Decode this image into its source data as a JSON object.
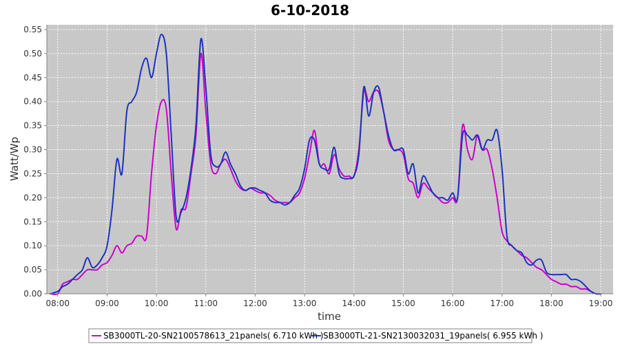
{
  "chart_data": {
    "type": "line",
    "title": "6-10-2018",
    "xlabel": "time",
    "ylabel": "Watt/Wp",
    "xlim": [
      7.78,
      19.25
    ],
    "ylim": [
      0.0,
      0.56
    ],
    "x_ticks": [
      "08:00",
      "09:00",
      "10:00",
      "11:00",
      "12:00",
      "13:00",
      "14:00",
      "15:00",
      "16:00",
      "17:00",
      "18:00",
      "19:00"
    ],
    "y_ticks": [
      "0.00",
      "0.05",
      "0.10",
      "0.15",
      "0.20",
      "0.25",
      "0.30",
      "0.35",
      "0.40",
      "0.45",
      "0.50",
      "0.55"
    ],
    "grid": true,
    "legend_position": "bottom",
    "series": [
      {
        "name": "SB3000TL-20-SN2100578613_21panels( 6.710 kWh )",
        "color": "#cc00cc",
        "x": [
          7.85,
          8.0,
          8.1,
          8.2,
          8.3,
          8.4,
          8.5,
          8.6,
          8.7,
          8.8,
          8.9,
          9.0,
          9.1,
          9.2,
          9.3,
          9.4,
          9.5,
          9.6,
          9.7,
          9.8,
          9.9,
          10.0,
          10.1,
          10.2,
          10.3,
          10.4,
          10.5,
          10.6,
          10.7,
          10.8,
          10.9,
          11.0,
          11.1,
          11.2,
          11.3,
          11.4,
          11.5,
          11.6,
          11.7,
          11.8,
          11.9,
          12.0,
          12.1,
          12.2,
          12.3,
          12.4,
          12.5,
          12.6,
          12.7,
          12.8,
          12.9,
          13.0,
          13.1,
          13.2,
          13.3,
          13.4,
          13.5,
          13.6,
          13.7,
          13.8,
          13.9,
          14.0,
          14.1,
          14.2,
          14.3,
          14.4,
          14.5,
          14.6,
          14.7,
          14.8,
          14.9,
          15.0,
          15.1,
          15.2,
          15.3,
          15.4,
          15.5,
          15.6,
          15.7,
          15.8,
          15.9,
          16.0,
          16.1,
          16.2,
          16.3,
          16.4,
          16.5,
          16.6,
          16.7,
          16.8,
          16.9,
          17.0,
          17.1,
          17.2,
          17.3,
          17.4,
          17.5,
          17.6,
          17.7,
          17.8,
          17.9,
          18.0,
          18.1,
          18.2,
          18.3,
          18.4,
          18.5,
          18.6,
          18.7,
          18.8,
          18.9,
          19.0
        ],
        "values": [
          0.0,
          0.0,
          0.02,
          0.025,
          0.03,
          0.03,
          0.04,
          0.05,
          0.05,
          0.05,
          0.06,
          0.065,
          0.08,
          0.1,
          0.085,
          0.1,
          0.105,
          0.12,
          0.12,
          0.12,
          0.25,
          0.35,
          0.4,
          0.385,
          0.25,
          0.135,
          0.175,
          0.18,
          0.25,
          0.33,
          0.5,
          0.38,
          0.27,
          0.25,
          0.27,
          0.28,
          0.26,
          0.235,
          0.22,
          0.215,
          0.22,
          0.215,
          0.21,
          0.21,
          0.205,
          0.195,
          0.19,
          0.19,
          0.19,
          0.2,
          0.21,
          0.24,
          0.29,
          0.34,
          0.27,
          0.27,
          0.25,
          0.29,
          0.26,
          0.245,
          0.245,
          0.245,
          0.3,
          0.42,
          0.4,
          0.42,
          0.42,
          0.38,
          0.32,
          0.3,
          0.3,
          0.29,
          0.24,
          0.23,
          0.2,
          0.23,
          0.22,
          0.21,
          0.2,
          0.19,
          0.19,
          0.2,
          0.2,
          0.35,
          0.3,
          0.28,
          0.33,
          0.3,
          0.3,
          0.26,
          0.2,
          0.13,
          0.11,
          0.1,
          0.09,
          0.08,
          0.075,
          0.065,
          0.055,
          0.05,
          0.04,
          0.03,
          0.025,
          0.02,
          0.02,
          0.015,
          0.015,
          0.01,
          0.01,
          0.005,
          0.0,
          0.0
        ]
      },
      {
        "name": "SB3000TL-21-SN2130032031_19panels( 6.955 kWh )",
        "color": "#1a33bb",
        "x": [
          7.85,
          8.0,
          8.1,
          8.2,
          8.3,
          8.4,
          8.5,
          8.6,
          8.7,
          8.8,
          8.9,
          9.0,
          9.1,
          9.2,
          9.3,
          9.4,
          9.5,
          9.6,
          9.7,
          9.8,
          9.9,
          10.0,
          10.1,
          10.2,
          10.3,
          10.4,
          10.5,
          10.6,
          10.7,
          10.8,
          10.9,
          11.0,
          11.1,
          11.2,
          11.3,
          11.4,
          11.5,
          11.6,
          11.7,
          11.8,
          11.9,
          12.0,
          12.1,
          12.2,
          12.3,
          12.4,
          12.5,
          12.6,
          12.7,
          12.8,
          12.9,
          13.0,
          13.1,
          13.2,
          13.3,
          13.4,
          13.5,
          13.6,
          13.7,
          13.8,
          13.9,
          14.0,
          14.1,
          14.2,
          14.3,
          14.4,
          14.5,
          14.6,
          14.7,
          14.8,
          14.9,
          15.0,
          15.1,
          15.2,
          15.3,
          15.4,
          15.5,
          15.6,
          15.7,
          15.8,
          15.9,
          16.0,
          16.1,
          16.2,
          16.3,
          16.4,
          16.5,
          16.6,
          16.7,
          16.8,
          16.9,
          17.0,
          17.1,
          17.2,
          17.3,
          17.4,
          17.5,
          17.6,
          17.7,
          17.8,
          17.9,
          18.0,
          18.1,
          18.2,
          18.3,
          18.4,
          18.5,
          18.6,
          18.7,
          18.8,
          18.9,
          19.0
        ],
        "values": [
          0.0,
          0.005,
          0.015,
          0.02,
          0.03,
          0.04,
          0.05,
          0.075,
          0.055,
          0.06,
          0.075,
          0.1,
          0.175,
          0.28,
          0.25,
          0.38,
          0.4,
          0.42,
          0.47,
          0.49,
          0.45,
          0.5,
          0.54,
          0.5,
          0.33,
          0.16,
          0.17,
          0.2,
          0.26,
          0.35,
          0.53,
          0.43,
          0.29,
          0.265,
          0.27,
          0.295,
          0.27,
          0.25,
          0.225,
          0.215,
          0.22,
          0.22,
          0.215,
          0.21,
          0.195,
          0.19,
          0.19,
          0.185,
          0.19,
          0.205,
          0.22,
          0.26,
          0.32,
          0.32,
          0.27,
          0.26,
          0.26,
          0.305,
          0.25,
          0.24,
          0.24,
          0.245,
          0.29,
          0.43,
          0.37,
          0.42,
          0.43,
          0.38,
          0.33,
          0.3,
          0.3,
          0.3,
          0.25,
          0.27,
          0.21,
          0.245,
          0.23,
          0.21,
          0.2,
          0.2,
          0.195,
          0.21,
          0.2,
          0.33,
          0.33,
          0.32,
          0.33,
          0.3,
          0.32,
          0.32,
          0.34,
          0.26,
          0.12,
          0.1,
          0.09,
          0.085,
          0.065,
          0.06,
          0.07,
          0.07,
          0.045,
          0.04,
          0.04,
          0.04,
          0.04,
          0.03,
          0.03,
          0.025,
          0.015,
          0.005,
          0.0,
          0.0
        ]
      }
    ]
  }
}
